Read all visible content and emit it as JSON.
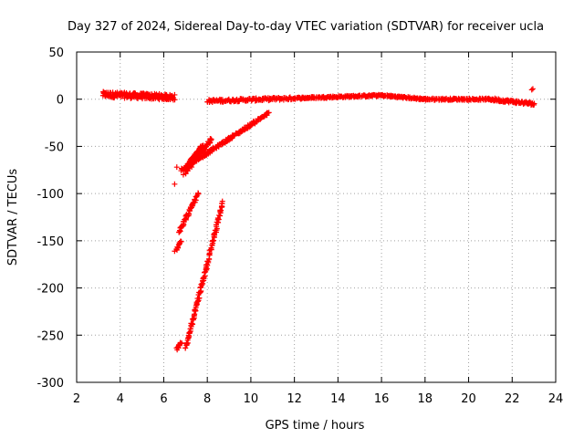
{
  "chart_data": {
    "type": "scatter",
    "title": "Day 327 of 2024, Sidereal Day-to-day VTEC variation (SDTVAR) for receiver ucla",
    "xlabel": "GPS time / hours",
    "ylabel": "SDTVAR / TECUs",
    "xlim": [
      2,
      24
    ],
    "ylim": [
      -300,
      50
    ],
    "xticks": [
      2,
      4,
      6,
      8,
      10,
      12,
      14,
      16,
      18,
      20,
      22,
      24
    ],
    "yticks": [
      50,
      0,
      -50,
      -100,
      -150,
      -200,
      -250,
      -300
    ],
    "grid": true,
    "marker": "+",
    "color": "#ff0000",
    "series": [
      {
        "segments": [
          {
            "x": [
              3.2,
              6.5
            ],
            "y": [
              5,
              2
            ],
            "noise": 6,
            "n": 200
          },
          {
            "x": [
              8.0,
              12.0
            ],
            "y": [
              -2,
              1
            ],
            "noise": 3,
            "n": 140
          },
          {
            "x": [
              12.0,
              16.0
            ],
            "y": [
              1,
              4
            ],
            "noise": 2,
            "n": 140
          },
          {
            "x": [
              16.0,
              18.0
            ],
            "y": [
              4,
              0
            ],
            "noise": 2,
            "n": 80
          },
          {
            "x": [
              18.0,
              21.0
            ],
            "y": [
              0,
              0
            ],
            "noise": 2,
            "n": 100
          },
          {
            "x": [
              21.0,
              23.0
            ],
            "y": [
              0,
              -5
            ],
            "noise": 3,
            "n": 80
          },
          {
            "x": [
              6.8,
              10.8
            ],
            "y": [
              -75,
              -15
            ],
            "noise": 3,
            "n": 160
          },
          {
            "x": [
              7.0,
              8.2
            ],
            "y": [
              -78,
              -42
            ],
            "noise": 4,
            "n": 60
          },
          {
            "x": [
              7.1,
              7.8
            ],
            "y": [
              -70,
              -48
            ],
            "noise": 3,
            "n": 40
          },
          {
            "x": [
              6.7,
              7.6
            ],
            "y": [
              -140,
              -100
            ],
            "noise": 4,
            "n": 50
          },
          {
            "x": [
              7.0,
              8.7
            ],
            "y": [
              -265,
              -110
            ],
            "noise": 4,
            "n": 140
          },
          {
            "x": [
              6.6,
              6.8
            ],
            "y": [
              -160,
              -150
            ],
            "noise": 3,
            "n": 12
          },
          {
            "x": [
              6.6,
              6.8
            ],
            "y": [
              -265,
              -258
            ],
            "noise": 3,
            "n": 12
          }
        ],
        "points": [
          {
            "x": 6.5,
            "y": -90
          },
          {
            "x": 6.5,
            "y": -161
          },
          {
            "x": 22.9,
            "y": 10
          },
          {
            "x": 22.95,
            "y": 11
          },
          {
            "x": 23.0,
            "y": -6
          },
          {
            "x": 6.6,
            "y": -72
          },
          {
            "x": 6.9,
            "y": -80
          }
        ]
      }
    ]
  }
}
